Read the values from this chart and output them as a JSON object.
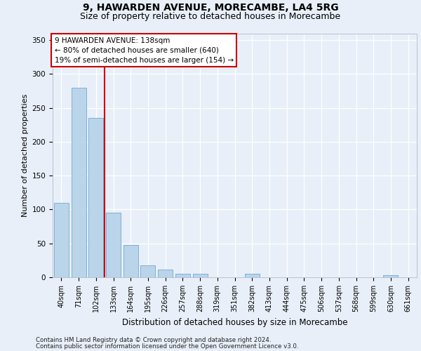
{
  "title_line1": "9, HAWARDEN AVENUE, MORECAMBE, LA4 5RG",
  "title_line2": "Size of property relative to detached houses in Morecambe",
  "xlabel": "Distribution of detached houses by size in Morecambe",
  "ylabel": "Number of detached properties",
  "footer_line1": "Contains HM Land Registry data © Crown copyright and database right 2024.",
  "footer_line2": "Contains public sector information licensed under the Open Government Licence v3.0.",
  "categories": [
    "40sqm",
    "71sqm",
    "102sqm",
    "133sqm",
    "164sqm",
    "195sqm",
    "226sqm",
    "257sqm",
    "288sqm",
    "319sqm",
    "351sqm",
    "382sqm",
    "413sqm",
    "444sqm",
    "475sqm",
    "506sqm",
    "537sqm",
    "568sqm",
    "599sqm",
    "630sqm",
    "661sqm"
  ],
  "values": [
    110,
    280,
    235,
    95,
    48,
    18,
    11,
    5,
    5,
    0,
    0,
    5,
    0,
    0,
    0,
    0,
    0,
    0,
    0,
    3,
    0
  ],
  "bar_color": "#bad4ea",
  "bar_edge_color": "#6fa8d8",
  "vline_position": 2.5,
  "vline_color": "#cc0000",
  "annotation_title": "9 HAWARDEN AVENUE: 138sqm",
  "annotation_line2": "← 80% of detached houses are smaller (640)",
  "annotation_line3": "19% of semi-detached houses are larger (154) →",
  "annotation_box_edgecolor": "#cc0000",
  "annotation_bg": "#ffffff",
  "ylim": [
    0,
    360
  ],
  "yticks": [
    0,
    50,
    100,
    150,
    200,
    250,
    300,
    350
  ],
  "bg_color": "#e8eff8",
  "grid_color": "#ffffff",
  "title_fontsize": 10,
  "subtitle_fontsize": 9,
  "footer_fontsize": 6.2,
  "ylabel_fontsize": 8,
  "xlabel_fontsize": 8.5,
  "tick_fontsize": 7.5,
  "xtick_fontsize": 7,
  "ann_fontsize": 7.5
}
